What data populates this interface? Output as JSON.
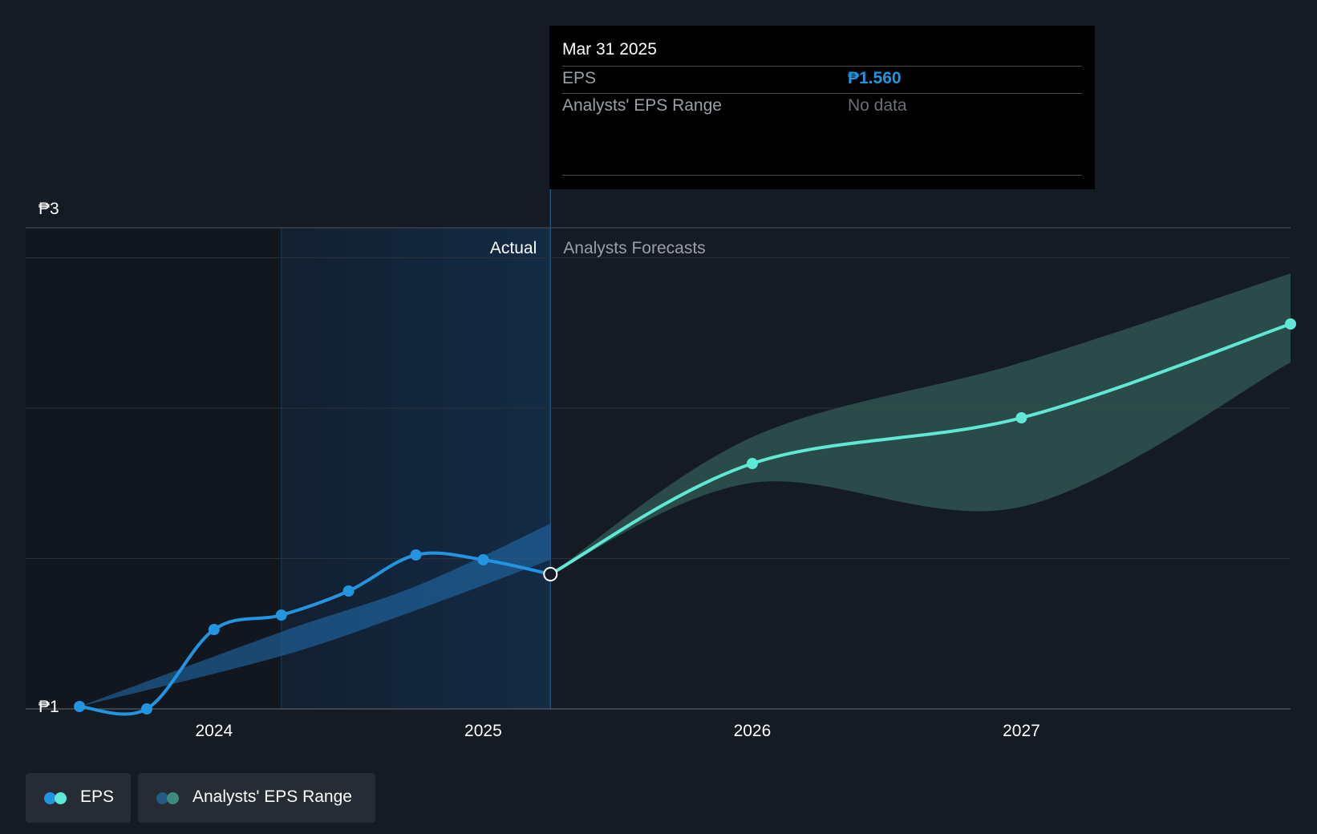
{
  "tooltip": {
    "date": "Mar 31 2025",
    "eps_label": "EPS",
    "eps_value": "₱1.560",
    "range_label": "Analysts' EPS Range",
    "range_value": "No data"
  },
  "legend": {
    "eps_label": "EPS",
    "range_label": "Analysts' EPS Range"
  },
  "colors": {
    "eps_actual": "#2394df",
    "eps_forecast": "#5ee8d5",
    "range_forecast": "#2e5350",
    "actual_shade": "#132b45",
    "background": "#151b24"
  },
  "chart_data": {
    "type": "line",
    "region_labels": {
      "actual": "Actual",
      "forecast": "Analysts Forecasts"
    },
    "y_ticks": [
      {
        "value": 3,
        "label": "₱3"
      },
      {
        "value": 1,
        "label": "₱1"
      }
    ],
    "x_ticks": [
      {
        "value": 2024.0,
        "label": "2024"
      },
      {
        "value": 2025.0,
        "label": "2025"
      },
      {
        "value": 2026.0,
        "label": "2026"
      },
      {
        "value": 2027.0,
        "label": "2027"
      }
    ],
    "xlim": [
      2023.3,
      2028.0
    ],
    "ylim": [
      1.0,
      3.0
    ],
    "grid": true,
    "divider_x": 2025.25,
    "past_range_start": 2024.25,
    "series": [
      {
        "name": "EPS",
        "segment": "actual",
        "points": [
          {
            "x": 2023.5,
            "y": 1.01
          },
          {
            "x": 2023.75,
            "y": 1.0
          },
          {
            "x": 2024.0,
            "y": 1.33
          },
          {
            "x": 2024.25,
            "y": 1.39
          },
          {
            "x": 2024.5,
            "y": 1.49
          },
          {
            "x": 2024.75,
            "y": 1.64
          },
          {
            "x": 2025.0,
            "y": 1.62
          },
          {
            "x": 2025.25,
            "y": 1.56
          }
        ]
      },
      {
        "name": "EPS",
        "segment": "forecast",
        "points": [
          {
            "x": 2025.25,
            "y": 1.56
          },
          {
            "x": 2026.0,
            "y": 2.02
          },
          {
            "x": 2027.0,
            "y": 2.21
          },
          {
            "x": 2028.0,
            "y": 2.6
          }
        ]
      }
    ],
    "range_bands": [
      {
        "name": "Analysts' EPS Range",
        "segment": "past",
        "upper": [
          {
            "x": 2023.5,
            "y": 1.01
          },
          {
            "x": 2024.25,
            "y": 1.32
          },
          {
            "x": 2024.75,
            "y": 1.51
          },
          {
            "x": 2025.25,
            "y": 1.77
          }
        ],
        "lower": [
          {
            "x": 2023.5,
            "y": 1.01
          },
          {
            "x": 2024.25,
            "y": 1.22
          },
          {
            "x": 2024.75,
            "y": 1.41
          },
          {
            "x": 2025.25,
            "y": 1.62
          }
        ]
      },
      {
        "name": "Analysts' EPS Range",
        "segment": "forecast",
        "upper": [
          {
            "x": 2025.25,
            "y": 1.56
          },
          {
            "x": 2026.0,
            "y": 2.13
          },
          {
            "x": 2027.0,
            "y": 2.44
          },
          {
            "x": 2028.0,
            "y": 2.81
          }
        ],
        "lower": [
          {
            "x": 2025.25,
            "y": 1.56
          },
          {
            "x": 2026.0,
            "y": 1.94
          },
          {
            "x": 2027.0,
            "y": 1.84
          },
          {
            "x": 2028.0,
            "y": 2.44
          }
        ]
      }
    ],
    "highlight": {
      "x": 2025.25,
      "y": 1.56
    }
  }
}
